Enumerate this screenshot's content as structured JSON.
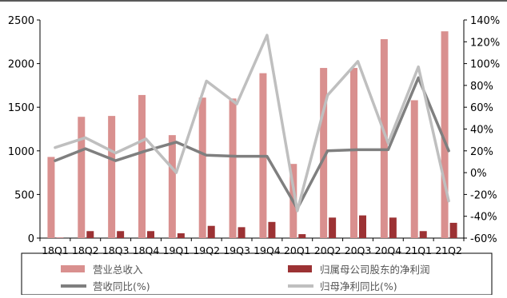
{
  "chart_data": {
    "type": "bar",
    "categories": [
      "18Q1",
      "18Q2",
      "18Q3",
      "18Q4",
      "19Q1",
      "19Q2",
      "19Q3",
      "19Q4",
      "20Q1",
      "20Q2",
      "20Q3",
      "20Q4",
      "21Q1",
      "21Q2"
    ],
    "bar_series": [
      {
        "name": "营业总收入",
        "color": "#d9908f",
        "values": [
          930,
          1390,
          1400,
          1640,
          1180,
          1610,
          1600,
          1890,
          850,
          1950,
          1950,
          2280,
          1580,
          2370
        ]
      },
      {
        "name": "归属母公司股东的净利润",
        "color": "#9c3234",
        "values": [
          5,
          80,
          80,
          80,
          55,
          140,
          125,
          185,
          45,
          235,
          260,
          235,
          80,
          175
        ]
      }
    ],
    "line_series": [
      {
        "name": "营收同比(%)",
        "color": "#7f7f7f",
        "values": [
          11,
          22,
          11,
          20,
          28,
          16,
          15,
          15,
          -33,
          20,
          21,
          21,
          87,
          20
        ]
      },
      {
        "name": "归母净利同比(%)",
        "color": "#bfbfbf",
        "values": [
          23,
          32,
          18,
          31,
          0,
          84,
          63,
          126,
          -35,
          71,
          102,
          27,
          97,
          -26
        ]
      }
    ],
    "y_left": {
      "min": 0,
      "max": 2500,
      "ticks": [
        0,
        500,
        1000,
        1500,
        2000,
        2500
      ]
    },
    "y_right": {
      "min": -60,
      "max": 140,
      "ticks": [
        "-60%",
        "-40%",
        "-20%",
        "0%",
        "20%",
        "40%",
        "60%",
        "80%",
        "100%",
        "120%",
        "140%"
      ]
    },
    "grid": false,
    "legend_position": "bottom"
  }
}
